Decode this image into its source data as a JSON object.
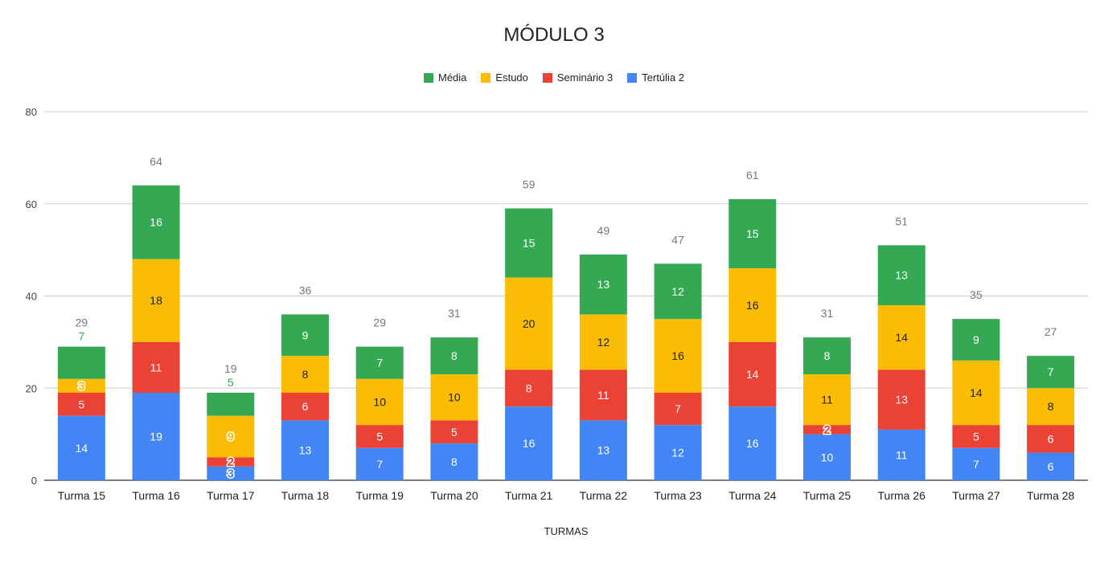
{
  "chart_data": {
    "type": "bar",
    "stacked": true,
    "title": "MÓDULO 3",
    "xlabel": "TURMAS",
    "ylabel": "",
    "ylim": [
      0,
      80
    ],
    "yticks": [
      "0",
      "20",
      "40",
      "60",
      "80"
    ],
    "legend_position": "top",
    "categories": [
      "Turma 15",
      "Turma 16",
      "Turma 17",
      "Turma 18",
      "Turma 19",
      "Turma 20",
      "Turma 21",
      "Turma 22",
      "Turma 23",
      "Turma 24",
      "Turma 25",
      "Turma 26",
      "Turma 27",
      "Turma 28"
    ],
    "series": [
      {
        "name": "Tertúlia 2",
        "color": "#4285f4",
        "label_color": "#ffffff",
        "values": [
          14,
          19,
          3,
          13,
          7,
          8,
          16,
          13,
          12,
          16,
          10,
          11,
          7,
          6
        ],
        "labels": [
          "14",
          "19",
          "3",
          "13",
          "7",
          "8",
          "16",
          "13",
          "12",
          "16",
          "10",
          "11",
          "7",
          "6"
        ]
      },
      {
        "name": "Seminário 3",
        "color": "#ea4335",
        "label_color": "#ffffff",
        "values": [
          5,
          11,
          2,
          6,
          5,
          5,
          8,
          11,
          7,
          14,
          2,
          13,
          5,
          6
        ],
        "labels": [
          "5",
          "11",
          "",
          "6",
          "5",
          "5",
          "8",
          "11",
          "7",
          "14",
          "",
          "13",
          "5",
          "6"
        ]
      },
      {
        "name": "Estudo",
        "color": "#fbbc04",
        "label_color": "#222222",
        "values": [
          3,
          18,
          9,
          8,
          10,
          10,
          20,
          12,
          16,
          16,
          11,
          14,
          14,
          8
        ],
        "labels": [
          "",
          "18",
          "",
          "8",
          "10",
          "10",
          "20",
          "12",
          "16",
          "16",
          "11",
          "14",
          "14",
          "8"
        ]
      },
      {
        "name": "Média",
        "color": "#34a853",
        "label_color": "#ffffff",
        "values": [
          7,
          16,
          5,
          9,
          7,
          8,
          15,
          13,
          12,
          15,
          8,
          13,
          9,
          7
        ],
        "labels": [
          "",
          "16",
          "",
          "9",
          "7",
          "8",
          "15",
          "13",
          "12",
          "15",
          "8",
          "13",
          "9",
          "7"
        ]
      }
    ],
    "outside_labels": [
      {
        "series": "Média",
        "category": "Turma 15",
        "text": "7"
      },
      {
        "series": "Média",
        "category": "Turma 17",
        "text": "5"
      }
    ],
    "overlap_labels": [
      {
        "series": "Estudo",
        "category": "Turma 15",
        "text": "3"
      },
      {
        "series": "Estudo",
        "category": "Turma 17",
        "text": "9"
      },
      {
        "series": "Seminário 3",
        "category": "Turma 17",
        "text": "2"
      },
      {
        "series": "Tertúlia 2",
        "category": "Turma 17",
        "text": "3"
      },
      {
        "series": "Seminário 3",
        "category": "Turma 25",
        "text": "2"
      }
    ],
    "totals": [
      "29",
      "64",
      "19",
      "36",
      "29",
      "31",
      "59",
      "49",
      "47",
      "61",
      "31",
      "51",
      "35",
      "27"
    ]
  }
}
